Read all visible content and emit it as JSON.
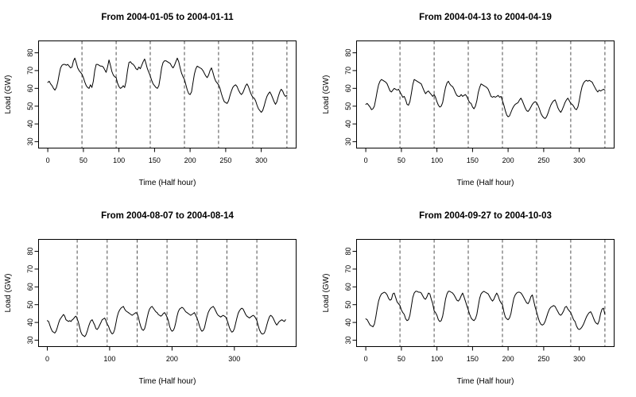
{
  "figure": {
    "background": "#ffffff",
    "text_color": "#000000",
    "series_color": "#000000",
    "day_separator_color": "#4f4f4f",
    "day_separator_style": "dashed"
  },
  "chart_data": [
    {
      "type": "line",
      "title": "From 2004-01-05 to 2004-01-11",
      "xlabel": "Time (Half hour)",
      "ylabel": "Load (GW)",
      "xlim": [
        -13,
        349
      ],
      "ylim": [
        26.4,
        86.7
      ],
      "xticks": [
        0,
        50,
        100,
        150,
        200,
        250,
        300
      ],
      "yticks": [
        30,
        40,
        50,
        60,
        70,
        80
      ],
      "vlines_x": [
        48,
        96,
        144,
        192,
        240,
        288,
        336
      ],
      "grid": false,
      "x_start": 0,
      "x_step": 2,
      "y": [
        63.3,
        64,
        62.5,
        61.5,
        60,
        59,
        60.5,
        63.5,
        68,
        71.5,
        73,
        73.5,
        73.5,
        73,
        73.5,
        72.5,
        71.5,
        72,
        75.5,
        77,
        74.5,
        71.5,
        70,
        69,
        68,
        66,
        63.5,
        61.5,
        60.5,
        60,
        62,
        60.5,
        64,
        70,
        73.5,
        73.5,
        73,
        72.5,
        72.5,
        72,
        70.5,
        69,
        72,
        76,
        73,
        69.5,
        67.5,
        66.5,
        66,
        63,
        61,
        60,
        60.5,
        61.5,
        60.5,
        64,
        70,
        74.5,
        75,
        74,
        73.5,
        72.5,
        71,
        70.5,
        72,
        71,
        73,
        75,
        76.5,
        74,
        71,
        69,
        67,
        64.5,
        62.5,
        61.5,
        60.5,
        60,
        61.5,
        66,
        71.5,
        74.5,
        75.5,
        75.5,
        75,
        74.5,
        74,
        72.5,
        71.5,
        73,
        75,
        77,
        75,
        71.5,
        68.5,
        66.5,
        65,
        62,
        59,
        57,
        56.5,
        58,
        63,
        68,
        71,
        72.5,
        72,
        71.5,
        71,
        70,
        68.5,
        67,
        66,
        67.5,
        70,
        71.5,
        69,
        66,
        64,
        63,
        62,
        60,
        57,
        54.5,
        52.5,
        52,
        51.5,
        53,
        56,
        58.5,
        60.5,
        61.5,
        62,
        61,
        59,
        57.5,
        56.5,
        57.5,
        59.5,
        61.5,
        62.5,
        61,
        58.5,
        56.5,
        55,
        54.5,
        53,
        50.5,
        48.5,
        47.5,
        46.5,
        47.5,
        50,
        53,
        55.5,
        57,
        58,
        56.5,
        54.5,
        52.5,
        51,
        52.5,
        55.5,
        58,
        59.5,
        58.5,
        56.5,
        55.5,
        56
      ]
    },
    {
      "type": "line",
      "title": "From 2004-04-13 to 2004-04-19",
      "xlabel": "Time (Half hour)",
      "ylabel": "Load (GW)",
      "xlim": [
        -13,
        349
      ],
      "ylim": [
        26.4,
        86.7
      ],
      "xticks": [
        0,
        50,
        100,
        150,
        200,
        250,
        300
      ],
      "yticks": [
        30,
        40,
        50,
        60,
        70,
        80
      ],
      "vlines_x": [
        48,
        96,
        144,
        192,
        240,
        288,
        336
      ],
      "grid": false,
      "x_start": 0,
      "x_step": 2,
      "y": [
        51,
        51.5,
        50.5,
        49.5,
        48,
        48.5,
        50,
        54,
        58.5,
        62,
        64,
        65,
        64.5,
        64,
        63.5,
        62.5,
        60.5,
        58.5,
        58,
        59,
        60,
        59.5,
        59,
        59.5,
        58,
        56.5,
        55,
        55.5,
        53.5,
        51,
        50.5,
        52.5,
        57,
        62,
        65,
        64.5,
        64,
        63.5,
        63,
        62.5,
        60.5,
        58.5,
        57,
        58,
        58.5,
        57.5,
        56.5,
        55.5,
        56.5,
        55,
        52.5,
        50.5,
        49.5,
        50,
        52,
        56.5,
        60.5,
        63,
        64,
        62.5,
        61.5,
        61,
        59.5,
        57.5,
        56,
        55.5,
        55.5,
        56.5,
        55.5,
        56,
        56.5,
        55.5,
        53.5,
        52,
        51.5,
        49.5,
        48.5,
        50,
        53,
        57.5,
        60.5,
        62.5,
        62,
        61.5,
        61,
        60.5,
        59.5,
        57.5,
        55.5,
        55,
        55.5,
        55,
        55.5,
        56,
        55,
        55.5,
        53,
        50.5,
        47.5,
        45,
        44,
        44.5,
        46.5,
        48.5,
        50,
        51,
        51.5,
        52,
        53.5,
        54.5,
        53,
        51,
        49,
        47.5,
        47,
        48,
        49.5,
        51,
        52,
        52.5,
        52,
        50.5,
        48.5,
        46,
        44.5,
        43.5,
        43,
        44,
        46,
        48.5,
        50.5,
        52,
        53,
        53.5,
        51.5,
        49,
        47.5,
        46.5,
        48,
        50,
        52,
        53.5,
        54.5,
        53,
        51.5,
        51,
        50,
        48.5,
        48,
        49.5,
        53,
        57.5,
        61,
        63,
        64,
        64.5,
        64,
        64.5,
        64,
        63.5,
        62,
        60.5,
        59,
        58,
        59,
        58.5,
        59,
        59.5,
        59
      ]
    },
    {
      "type": "line",
      "title": "From 2004-08-07 to 2004-08-14",
      "xlabel": "Time (Half hour)",
      "ylabel": "Load (GW)",
      "xlim": [
        -14,
        399
      ],
      "ylim": [
        26.4,
        86.7
      ],
      "xticks": [
        0,
        100,
        200,
        300
      ],
      "yticks": [
        30,
        40,
        50,
        60,
        70,
        80
      ],
      "vlines_x": [
        48,
        96,
        144,
        192,
        240,
        288,
        336
      ],
      "grid": false,
      "x_start": 0,
      "x_step": 2,
      "y": [
        41,
        40.5,
        38.5,
        36.5,
        35,
        34.5,
        34,
        35,
        37,
        39.5,
        41.5,
        42.5,
        43.5,
        44.5,
        43.5,
        41.5,
        41,
        40.5,
        41,
        40.5,
        41.5,
        42,
        43,
        43.5,
        42,
        40,
        37,
        34.5,
        33,
        32.5,
        32,
        33,
        35,
        37.5,
        39.5,
        41,
        41.5,
        40,
        38.5,
        36.5,
        36,
        37,
        38.5,
        40,
        41.5,
        42,
        42.5,
        41,
        39,
        38,
        36,
        34.5,
        33.5,
        34,
        36,
        39.5,
        43,
        45.5,
        47,
        48,
        48.5,
        49,
        47.5,
        46.5,
        46,
        45.5,
        45,
        44.5,
        44,
        44.5,
        45,
        45.5,
        45,
        43,
        40,
        37.5,
        36,
        35.5,
        36.5,
        39,
        42.5,
        45.5,
        47.5,
        48.5,
        49,
        48,
        47,
        46,
        45.5,
        44.5,
        44,
        43.5,
        44,
        45,
        45.5,
        44.5,
        43,
        41,
        38,
        36,
        35,
        35.5,
        37,
        40,
        43.5,
        46,
        47.5,
        48,
        48.5,
        48,
        47,
        46,
        45.5,
        45,
        44.5,
        44,
        44.5,
        45,
        45.5,
        44,
        42.5,
        40.5,
        38,
        36,
        35,
        35.5,
        37,
        40,
        43,
        45.5,
        47,
        48,
        48.5,
        49,
        48,
        46.5,
        45,
        44,
        43.5,
        43,
        43.5,
        44,
        43.5,
        43,
        41.5,
        39.5,
        37,
        35.5,
        34.5,
        35,
        36.5,
        39.5,
        42.5,
        45,
        46.5,
        47.5,
        48,
        47.5,
        46,
        44.5,
        43.5,
        43,
        42.5,
        43,
        43.5,
        44,
        43.5,
        42.5,
        41,
        38.5,
        36,
        34.5,
        33.5,
        33.5,
        34,
        36,
        38.5,
        41,
        43,
        44,
        43.5,
        42.5,
        41,
        39.5,
        38.5,
        39.5,
        40.5,
        41,
        41.5,
        41,
        40.5,
        41.5
      ]
    },
    {
      "type": "line",
      "title": "From 2004-09-27 to 2004-10-03",
      "xlabel": "Time (Half hour)",
      "ylabel": "Load (GW)",
      "xlim": [
        -13,
        349
      ],
      "ylim": [
        26.4,
        86.7
      ],
      "xticks": [
        0,
        50,
        100,
        150,
        200,
        250,
        300
      ],
      "yticks": [
        30,
        40,
        50,
        60,
        70,
        80
      ],
      "vlines_x": [
        48,
        96,
        144,
        192,
        240,
        288,
        336
      ],
      "grid": false,
      "x_start": 0,
      "x_step": 2,
      "y": [
        42,
        41.5,
        40,
        38.5,
        38,
        37.5,
        39,
        43,
        48,
        52,
        54.5,
        56,
        56.5,
        57,
        56.5,
        55.5,
        53.5,
        52.5,
        53,
        56,
        56.5,
        54,
        51.5,
        50.5,
        49.5,
        47,
        45.5,
        44.5,
        42,
        41,
        41.5,
        44,
        49,
        54,
        56.5,
        57.5,
        57.5,
        57,
        57,
        56.5,
        55,
        53.5,
        53,
        54.5,
        56.5,
        56,
        53,
        50.5,
        46.5,
        45.5,
        44,
        41.5,
        40.5,
        41,
        43.5,
        48,
        53,
        56,
        57.5,
        57.5,
        57,
        56.5,
        55.5,
        54,
        52.5,
        52,
        53,
        55,
        56.5,
        54.5,
        52,
        49.5,
        47,
        44.5,
        42.5,
        41.5,
        41,
        42,
        44.5,
        49,
        53.5,
        56,
        57,
        57.5,
        57,
        56.5,
        56,
        54.5,
        53,
        52,
        53,
        55,
        56.5,
        55,
        52.5,
        51,
        50,
        46,
        43,
        42,
        41.5,
        42.5,
        45,
        49.5,
        53.5,
        55.5,
        56.5,
        57,
        57,
        56.5,
        55.5,
        54,
        52.5,
        51,
        50.5,
        52,
        54.5,
        55.5,
        52,
        48.5,
        46,
        43,
        40.5,
        39,
        38.5,
        39,
        40.5,
        43,
        45.5,
        47.5,
        48.5,
        49,
        49.5,
        49,
        47.5,
        46,
        44.5,
        44,
        45,
        46.5,
        48.5,
        49,
        47.5,
        46.5,
        45.5,
        43.5,
        41.5,
        40.5,
        38,
        36.5,
        36,
        36.5,
        37.5,
        39,
        41,
        43,
        44.5,
        45.5,
        46,
        44.5,
        42.5,
        40.5,
        39.5,
        39,
        41,
        45,
        47.5,
        48,
        44.5
      ]
    }
  ]
}
